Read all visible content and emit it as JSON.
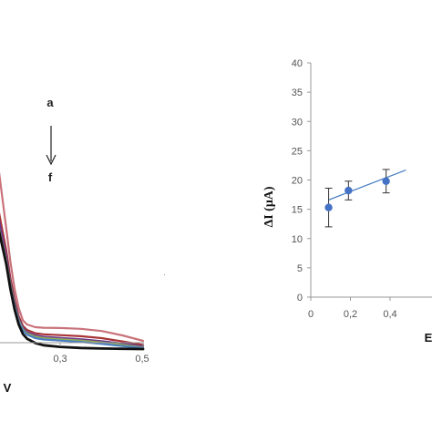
{
  "chart_data": [
    {
      "type": "line",
      "panel": "left",
      "xlabel": "V",
      "ylabel": "",
      "xlim": [
        0.1,
        0.5
      ],
      "x_ticks": [
        "0,3",
        "0,5"
      ],
      "grid": false,
      "annotations": {
        "top": "a",
        "bottom": "f"
      },
      "series": [
        {
          "color": "#c9727a",
          "x": [
            0.1,
            0.11,
            0.13,
            0.15,
            0.17,
            0.18,
            0.19,
            0.2,
            0.21,
            0.22,
            0.24,
            0.26,
            0.3,
            0.35,
            0.4,
            0.45,
            0.5
          ],
          "y": [
            0.92,
            0.99,
            0.86,
            0.68,
            0.44,
            0.32,
            0.22,
            0.15,
            0.105,
            0.09,
            0.08,
            0.078,
            0.077,
            0.074,
            0.066,
            0.05,
            0.03
          ]
        },
        {
          "color": "#a83436",
          "x": [
            0.1,
            0.11,
            0.13,
            0.15,
            0.17,
            0.18,
            0.19,
            0.2,
            0.21,
            0.22,
            0.24,
            0.26,
            0.3,
            0.35,
            0.4,
            0.45,
            0.5
          ],
          "y": [
            0.62,
            0.68,
            0.62,
            0.52,
            0.36,
            0.26,
            0.18,
            0.12,
            0.085,
            0.07,
            0.058,
            0.054,
            0.051,
            0.047,
            0.04,
            0.028,
            0.015
          ]
        },
        {
          "color": "#6d3a8c",
          "x": [
            0.1,
            0.11,
            0.13,
            0.15,
            0.17,
            0.18,
            0.19,
            0.2,
            0.21,
            0.22,
            0.24,
            0.26,
            0.3,
            0.35,
            0.4,
            0.45,
            0.5
          ],
          "y": [
            0.58,
            0.63,
            0.58,
            0.49,
            0.34,
            0.245,
            0.17,
            0.112,
            0.078,
            0.062,
            0.05,
            0.045,
            0.041,
            0.036,
            0.029,
            0.02,
            0.01
          ]
        },
        {
          "color": "#8fae55",
          "x": [
            0.1,
            0.11,
            0.13,
            0.15,
            0.17,
            0.18,
            0.19,
            0.2,
            0.21,
            0.22,
            0.24,
            0.26,
            0.3,
            0.35,
            0.4,
            0.45,
            0.5
          ],
          "y": [
            0.52,
            0.58,
            0.54,
            0.46,
            0.32,
            0.235,
            0.16,
            0.105,
            0.072,
            0.057,
            0.045,
            0.04,
            0.036,
            0.031,
            0.024,
            0.015,
            0.006
          ]
        },
        {
          "color": "#4a7fc1",
          "x": [
            0.1,
            0.11,
            0.13,
            0.15,
            0.17,
            0.18,
            0.19,
            0.2,
            0.21,
            0.22,
            0.24,
            0.26,
            0.3,
            0.35,
            0.4,
            0.45,
            0.5
          ],
          "y": [
            0.5,
            0.55,
            0.52,
            0.445,
            0.31,
            0.228,
            0.155,
            0.1,
            0.068,
            0.053,
            0.04,
            0.035,
            0.031,
            0.026,
            0.019,
            0.011,
            0.004
          ]
        },
        {
          "color": "#111111",
          "x": [
            0.1,
            0.11,
            0.13,
            0.15,
            0.17,
            0.18,
            0.19,
            0.2,
            0.21,
            0.22,
            0.24,
            0.26,
            0.3,
            0.35,
            0.4,
            0.45,
            0.5
          ],
          "y": [
            0.47,
            0.54,
            0.52,
            0.45,
            0.31,
            0.22,
            0.145,
            0.09,
            0.055,
            0.038,
            0.022,
            0.014,
            0.008,
            0.004,
            0.002,
            0.001,
            0.0
          ]
        }
      ]
    },
    {
      "type": "scatter",
      "panel": "right",
      "ylabel": "ΔI (μA)",
      "xlabel": "E",
      "ylim": [
        0,
        40
      ],
      "y_ticks": [
        "0",
        "5",
        "10",
        "15",
        "20",
        "25",
        "30",
        "35",
        "40"
      ],
      "x_ticks": [
        "0",
        "0,2",
        "0,4"
      ],
      "grid": false,
      "series": [
        {
          "color": "#4472c4",
          "x": [
            0.09,
            0.19,
            0.38
          ],
          "y": [
            15.3,
            18.2,
            19.8
          ],
          "error": [
            3.3,
            1.6,
            2.0
          ]
        }
      ],
      "trendline": {
        "x": [
          0.09,
          0.48
        ],
        "y": [
          16.6,
          21.7
        ],
        "color": "#4a7fc1"
      }
    }
  ]
}
